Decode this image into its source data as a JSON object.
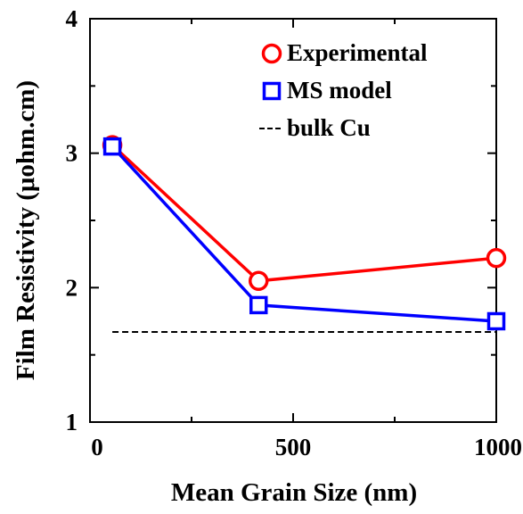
{
  "chart_data": {
    "type": "line",
    "title": "",
    "xlabel": "Mean Grain Size (nm)",
    "ylabel": "Film Resistivity (μohm.cm)",
    "xlim": [
      0,
      1000
    ],
    "ylim": [
      1,
      4
    ],
    "x_ticks": [
      0,
      500,
      1000
    ],
    "y_ticks": [
      1,
      2,
      3,
      4
    ],
    "x_tick_labels": [
      "0",
      "500",
      "1000"
    ],
    "y_tick_labels": [
      "1",
      "2",
      "3",
      "4"
    ],
    "grid": false,
    "legend_position": "top-right",
    "series": [
      {
        "name": "Experimental",
        "color": "#ff0000",
        "marker": "circle",
        "line_style": "solid",
        "x": [
          55,
          415,
          1000
        ],
        "y": [
          3.06,
          2.05,
          2.22
        ]
      },
      {
        "name": "MS model",
        "color": "#0000ff",
        "marker": "square",
        "line_style": "solid",
        "x": [
          55,
          415,
          1000
        ],
        "y": [
          3.05,
          1.87,
          1.75
        ]
      },
      {
        "name": "bulk Cu",
        "color": "#000000",
        "marker": "none",
        "line_style": "dashed",
        "x": [
          55,
          1000
        ],
        "y": [
          1.67,
          1.67
        ]
      }
    ]
  }
}
